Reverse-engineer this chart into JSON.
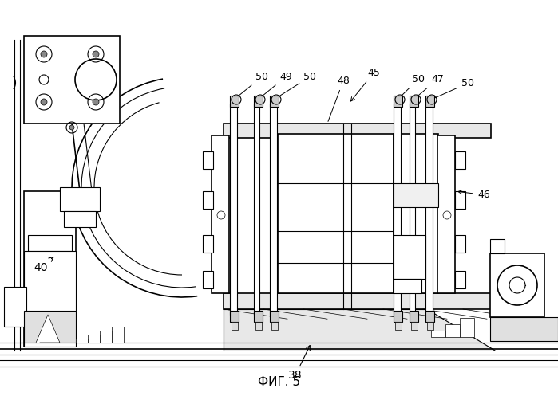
{
  "title": "ФИГ. 5",
  "bg_color": "#ffffff",
  "fig_width": 6.99,
  "fig_height": 4.97
}
